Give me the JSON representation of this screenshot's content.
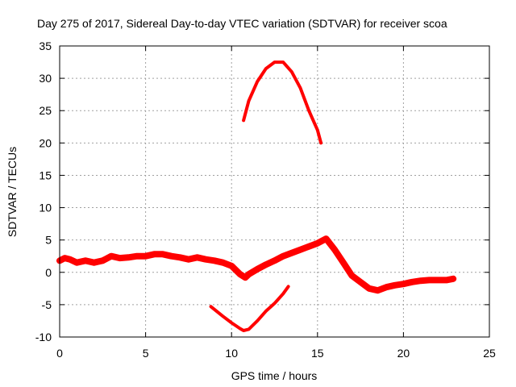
{
  "chart_data": {
    "type": "line",
    "title": "Day 275 of 2017, Sidereal Day-to-day VTEC variation (SDTVAR) for receiver scoa",
    "xlabel": "GPS time / hours",
    "ylabel": "SDTVAR / TECUs",
    "xlim": [
      0,
      25
    ],
    "ylim": [
      -10,
      35
    ],
    "xticks": [
      "0",
      "5",
      "10",
      "15",
      "20",
      "25"
    ],
    "yticks": [
      "-10",
      "-5",
      "0",
      "5",
      "10",
      "15",
      "20",
      "25",
      "30",
      "35"
    ],
    "grid": true,
    "color": "#ff0000",
    "series": [
      {
        "name": "main",
        "x": [
          0.0,
          0.3,
          0.6,
          1.0,
          1.5,
          2.0,
          2.5,
          3.0,
          3.5,
          4.0,
          4.5,
          5.0,
          5.5,
          6.0,
          6.5,
          7.0,
          7.5,
          8.0,
          8.5,
          9.0,
          9.5,
          10.0,
          10.5,
          10.8,
          11.0,
          11.5,
          12.0,
          12.5,
          13.0,
          13.5,
          14.0,
          14.5,
          15.0,
          15.5,
          16.0,
          16.5,
          17.0,
          17.5,
          18.0,
          18.5,
          19.0,
          19.5,
          20.0,
          20.5,
          21.0,
          21.5,
          22.0,
          22.5,
          22.9
        ],
        "y": [
          1.8,
          2.2,
          2.0,
          1.5,
          1.8,
          1.5,
          1.8,
          2.5,
          2.2,
          2.3,
          2.5,
          2.5,
          2.8,
          2.8,
          2.5,
          2.3,
          2.0,
          2.3,
          2.0,
          1.8,
          1.5,
          1.0,
          -0.3,
          -0.8,
          -0.3,
          0.5,
          1.2,
          1.8,
          2.5,
          3.0,
          3.5,
          4.0,
          4.5,
          5.2,
          3.5,
          1.5,
          -0.5,
          -1.5,
          -2.5,
          -2.8,
          -2.3,
          -2.0,
          -1.8,
          -1.5,
          -1.3,
          -1.2,
          -1.2,
          -1.2,
          -1.0
        ],
        "width": 8
      },
      {
        "name": "high",
        "x": [
          10.7,
          11.0,
          11.5,
          12.0,
          12.5,
          13.0,
          13.5,
          14.0,
          14.5,
          15.0,
          15.2
        ],
        "y": [
          23.5,
          26.5,
          29.5,
          31.5,
          32.5,
          32.5,
          31.0,
          28.5,
          25.0,
          22.0,
          20.0
        ],
        "width": 4
      },
      {
        "name": "low",
        "x": [
          8.8,
          9.5,
          10.0,
          10.5,
          10.7,
          11.0,
          11.5,
          12.0,
          12.5,
          13.0,
          13.3
        ],
        "y": [
          -5.3,
          -6.8,
          -7.8,
          -8.7,
          -9.0,
          -8.8,
          -7.5,
          -6.0,
          -4.8,
          -3.3,
          -2.2
        ],
        "width": 4
      }
    ]
  }
}
